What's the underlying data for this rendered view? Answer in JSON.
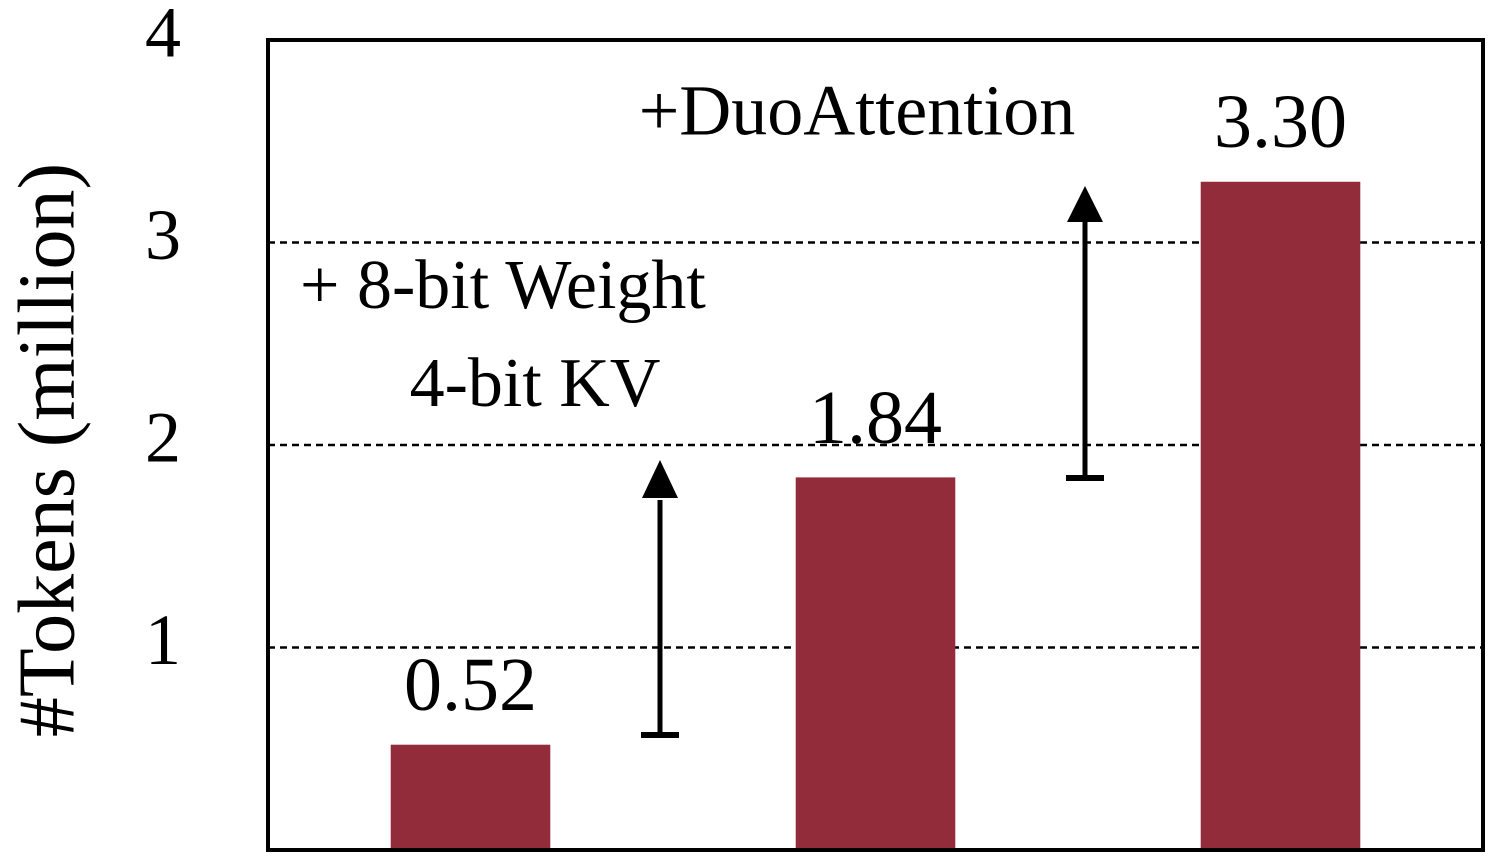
{
  "chart_data": {
    "type": "bar",
    "y_label": "#Tokens (million)",
    "categories": [
      null,
      null,
      null
    ],
    "values": [
      0.52,
      1.84,
      3.3
    ],
    "value_labels": [
      "0.52",
      "1.84",
      "3.30"
    ],
    "color": "#922b3a",
    "ylim": [
      0,
      4
    ],
    "yticks": [
      1,
      2,
      3,
      4
    ],
    "grid": true,
    "annotations": [
      "+ 8-bit Weight",
      "4-bit KV",
      "+DuoAttention"
    ]
  }
}
